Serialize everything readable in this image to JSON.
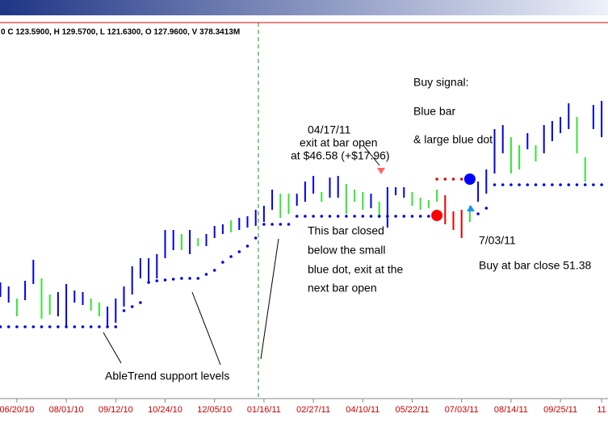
{
  "chart_data": {
    "type": "ohlc",
    "header": "0 C 123.5900, H 129.5700, L 121.6300, O 127.9600, V 378.3413M",
    "annotations": {
      "exit_date": "04/17/11",
      "exit_line1": "exit at bar open",
      "exit_line2": "at $46.58 (+$17.96)",
      "buy_title": "Buy signal:",
      "buy_line1": "Blue bar",
      "buy_line2": "& large blue dot",
      "close_line1": "This bar closed",
      "close_line2": "below the small",
      "close_line3": "blue dot, exit at the",
      "close_line4": "next bar open",
      "buy_date": "7/03/11",
      "buy_close": "Buy at bar close 51.38",
      "support": "AbleTrend support levels"
    },
    "categories": [
      null,
      null,
      "06/20/10",
      null,
      null,
      null,
      null,
      null,
      "08/01/10",
      null,
      null,
      null,
      null,
      null,
      "09/12/10",
      null,
      null,
      null,
      null,
      null,
      "10/24/10",
      null,
      null,
      null,
      null,
      null,
      "12/05/10",
      null,
      null,
      null,
      null,
      null,
      "01/16/11",
      null,
      null,
      null,
      null,
      null,
      "02/27/11",
      null,
      null,
      null,
      null,
      null,
      "04/10/11",
      null,
      null,
      null,
      null,
      null,
      "05/22/11",
      null,
      null,
      null,
      null,
      null,
      "07/03/11",
      null,
      null,
      null,
      null,
      null,
      "08/14/11",
      null,
      null,
      null,
      null,
      null,
      "09/25/11",
      null,
      null,
      null,
      null,
      "11"
    ],
    "ylim": [
      7.9,
      76.9
    ],
    "bars": {
      "high": [
        28.9,
        28.15,
        25.9,
        29.2,
        33.1,
        29.65,
        26.65,
        27.1,
        28.6,
        27.4,
        27.1,
        25.9,
        25.15,
        24.4,
        25.9,
        28.15,
        31.9,
        33.4,
        33.4,
        34.15,
        38.65,
        38.65,
        37.9,
        38.65,
        37.15,
        37.9,
        39.4,
        39.7,
        40.45,
        40.9,
        41.2,
        42.4,
        43.15,
        46.15,
        45.4,
        45.4,
        45.4,
        47.65,
        48.7,
        45.7,
        48.4,
        48.7,
        47.2,
        46.15,
        45.7,
        45.4,
        43.9,
        46.6,
        46.6,
        46.6,
        45.7,
        44.65,
        44.2,
        46.15,
        45.1,
        42.1,
        42.4,
        43.15,
        47.65,
        49.9,
        57.4,
        58.15,
        55.9,
        54.4,
        56.65,
        54.4,
        58.15,
        58.9,
        59.65,
        62.2,
        59.65,
        52.15,
        61.9,
        62.65
      ],
      "low": [
        26.2,
        25.15,
        22.6,
        25.6,
        28.6,
        22.15,
        22.9,
        22.6,
        20.65,
        25.15,
        24.7,
        23.65,
        22.6,
        20.65,
        21.4,
        24.4,
        26.65,
        29.65,
        28.9,
        29.65,
        33.4,
        34.9,
        34.9,
        34.15,
        35.65,
        35.65,
        37.15,
        37.9,
        38.2,
        38.65,
        39.1,
        39.4,
        40.15,
        42.4,
        40.9,
        41.65,
        43.15,
        43.9,
        45.4,
        43.9,
        44.65,
        44.65,
        41.65,
        43.9,
        42.4,
        42.7,
        40.9,
        39.1,
        45.1,
        44.65,
        43.15,
        42.4,
        42.7,
        43.9,
        39.7,
        38.65,
        37.15,
        40.15,
        43.9,
        45.4,
        49.15,
        52.9,
        49.15,
        49.9,
        53.65,
        51.4,
        52.9,
        55.15,
        56.65,
        57.4,
        52.9,
        47.65,
        57.4,
        55.9
      ],
      "colors": [
        "#0000e6",
        "#0000e6",
        "#33e633",
        "#0000e6",
        "#0000e6",
        "#33e633",
        "#33e633",
        "#0000e6",
        "#0000e6",
        "#0000e6",
        "#0000e6",
        "#33e633",
        "#33e633",
        "#0000e6",
        "#0000e6",
        "#0000e6",
        "#0000e6",
        "#0000e6",
        "#0000e6",
        "#0000e6",
        "#0000e6",
        "#0000e6",
        "#33e633",
        "#0000e6",
        "#33e633",
        "#0000e6",
        "#0000e6",
        "#0000e6",
        "#33e633",
        "#0000e6",
        "#0000e6",
        "#0000e6",
        "#0000e6",
        "#0000e6",
        "#33e633",
        "#33e633",
        "#0000e6",
        "#0000e6",
        "#0000e6",
        "#33e633",
        "#0000e6",
        "#0000e6",
        "#33e633",
        "#33e633",
        "#33e633",
        "#0000e6",
        "#33e633",
        "#0000e6",
        "#0000e6",
        "#0000e6",
        "#33e633",
        "#33e633",
        "#33e633",
        "#33e633",
        "#e60000",
        "#e60000",
        "#e60000",
        "#33e633",
        "#0000e6",
        "#0000e6",
        "#0000e6",
        "#0000e6",
        "#33e633",
        "#33e633",
        "#0000e6",
        "#33e633",
        "#0000e6",
        "#0000e6",
        "#0000e6",
        "#0000e6",
        "#33e633",
        "#33e633",
        "#0000e6",
        "#0000e6"
      ]
    },
    "support": {
      "color": "#0000e6",
      "values": [
        20.65,
        20.65,
        20.65,
        20.65,
        20.65,
        20.65,
        20.65,
        20.65,
        20.65,
        20.65,
        20.65,
        20.65,
        20.65,
        20.65,
        20.65,
        23.65,
        24.4,
        25.15,
        28.9,
        29.2,
        29.35,
        29.5,
        29.65,
        29.65,
        29.65,
        30.4,
        31.15,
        32.65,
        33.7,
        34.6,
        35.65,
        37.15,
        39.7,
        39.7,
        39.7,
        39.7,
        41.2,
        41.2,
        41.2,
        41.2,
        41.2,
        41.2,
        41.2,
        41.2,
        41.2,
        41.2,
        41.2,
        41.2,
        41.2,
        41.2,
        41.2,
        41.2,
        41.2,
        null,
        null,
        null,
        null,
        null,
        41.65,
        42.7,
        47.05,
        47.05,
        47.05,
        47.05,
        47.05,
        47.05,
        47.05,
        47.05,
        47.05,
        47.05,
        47.05,
        47.05,
        47.05,
        47.05
      ]
    },
    "stop": {
      "color": "#e60000",
      "values": [
        null,
        null,
        null,
        null,
        null,
        null,
        null,
        null,
        null,
        null,
        null,
        null,
        null,
        null,
        null,
        null,
        null,
        null,
        null,
        null,
        null,
        null,
        null,
        null,
        null,
        null,
        null,
        null,
        null,
        null,
        null,
        null,
        null,
        null,
        null,
        null,
        null,
        null,
        null,
        null,
        null,
        null,
        null,
        null,
        null,
        null,
        null,
        null,
        null,
        null,
        null,
        null,
        null,
        48.1,
        48.1,
        48.1,
        48.1,
        null,
        null,
        null,
        null,
        null,
        null,
        null,
        null,
        null,
        null,
        null,
        null,
        null,
        null,
        null,
        null,
        null
      ]
    },
    "exit_dot": {
      "color": "#ff0000",
      "values": [
        null,
        null,
        null,
        null,
        null,
        null,
        null,
        null,
        null,
        null,
        null,
        null,
        null,
        null,
        null,
        null,
        null,
        null,
        null,
        null,
        null,
        null,
        null,
        null,
        null,
        null,
        null,
        null,
        null,
        null,
        null,
        null,
        null,
        null,
        null,
        null,
        null,
        null,
        null,
        null,
        null,
        null,
        null,
        null,
        null,
        null,
        null,
        null,
        null,
        null,
        null,
        null,
        null,
        41.35,
        null,
        null,
        null,
        null,
        null,
        null,
        null,
        null,
        null,
        null,
        null,
        null,
        null,
        null,
        null,
        null,
        null,
        null,
        null,
        null
      ]
    },
    "buy_dot": {
      "color": "#0000ff",
      "values": [
        null,
        null,
        null,
        null,
        null,
        null,
        null,
        null,
        null,
        null,
        null,
        null,
        null,
        null,
        null,
        null,
        null,
        null,
        null,
        null,
        null,
        null,
        null,
        null,
        null,
        null,
        null,
        null,
        null,
        null,
        null,
        null,
        null,
        null,
        null,
        null,
        null,
        null,
        null,
        null,
        null,
        null,
        null,
        null,
        null,
        null,
        null,
        null,
        null,
        null,
        null,
        null,
        null,
        null,
        null,
        null,
        null,
        48.1,
        null,
        null,
        null,
        null,
        null,
        null,
        null,
        null,
        null,
        null,
        null,
        null,
        null,
        null,
        null,
        null
      ]
    }
  }
}
